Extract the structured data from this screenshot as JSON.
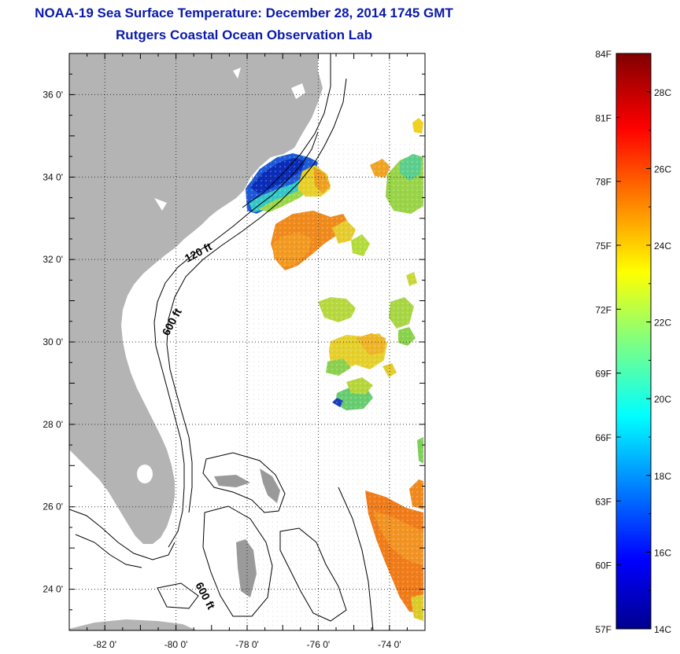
{
  "header": {
    "title": "NOAA-19 Sea Surface Temperature:  December 28, 2014 1745 GMT",
    "subtitle": "Rutgers Coastal Ocean Observation Lab"
  },
  "map": {
    "lon_range": [
      -83,
      -73
    ],
    "lat_range": [
      23,
      37
    ],
    "lat_ticks": [
      {
        "value": 36,
        "label": "36 0'"
      },
      {
        "value": 34,
        "label": "34 0'"
      },
      {
        "value": 32,
        "label": "32 0'"
      },
      {
        "value": 30,
        "label": "30 0'"
      },
      {
        "value": 28,
        "label": "28 0'"
      },
      {
        "value": 26,
        "label": "26 0'"
      },
      {
        "value": 24,
        "label": "24 0'"
      }
    ],
    "lon_ticks": [
      {
        "value": -82,
        "label": "-82 0'"
      },
      {
        "value": -80,
        "label": "-80 0'"
      },
      {
        "value": -78,
        "label": "-78 0'"
      },
      {
        "value": -76,
        "label": "-76 0'"
      },
      {
        "value": -74,
        "label": "-74 0'"
      }
    ],
    "contour_labels": {
      "c120": "120 ft",
      "c600a": "600 ft",
      "c600b": "600 ft"
    },
    "colors": {
      "land": "#b4b4b4",
      "ocean": "#ffffff",
      "grid": "#333333"
    }
  },
  "colorbar": {
    "range_c": [
      14,
      29
    ],
    "fahrenheit_labels": [
      "84F",
      "81F",
      "78F",
      "75F",
      "72F",
      "69F",
      "66F",
      "63F",
      "60F",
      "57F"
    ],
    "celsius_labels": [
      "28C",
      "26C",
      "24C",
      "22C",
      "20C",
      "18C",
      "16C",
      "14C"
    ]
  }
}
